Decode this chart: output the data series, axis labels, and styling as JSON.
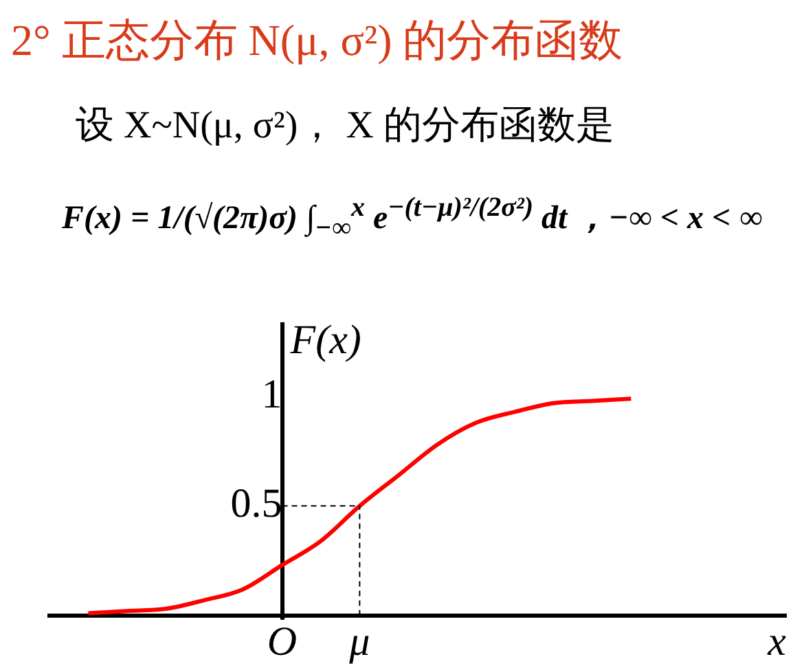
{
  "chart_data": {
    "type": "line",
    "title": "2° 正态分布 N(μ, σ²) 的分布函数",
    "subtitle": "设 X~N(μ, σ²)，  X 的分布函数是",
    "annotations": [
      "F(x) = 1/(√(2π)σ) ∫$_{−∞}$$^{x}$ e$^{−(t−μ)²/(2σ²)}$ dt ，−∞ < x < ∞"
    ],
    "xlabel": "x",
    "ylabel": "F(x)",
    "categories": [
      null,
      null,
      null,
      null,
      null,
      null,
      "O",
      null,
      "μ",
      null,
      null,
      null,
      null,
      null,
      null,
      null,
      null,
      null,
      null,
      null
    ],
    "series": [
      {
        "color": "#ff0000",
        "values": [
          null,
          0.01,
          0.02,
          0.03,
          0.07,
          0.12,
          0.23,
          0.34,
          0.5,
          0.64,
          0.78,
          0.88,
          0.93,
          0.97,
          0.98,
          0.99,
          null,
          null,
          null,
          null
        ]
      }
    ],
    "ylim": [
      -0.02,
      1.33
    ],
    "yticks": [
      0.5,
      1
    ],
    "ref_lines": [
      {
        "axis": "y",
        "value": 0.5,
        "color": "#000000",
        "line_style": "dashed"
      },
      {
        "axis": "x",
        "value": "μ",
        "color": "#000000",
        "line_style": "dashed"
      }
    ],
    "grid": false,
    "marker": "none",
    "line_style": "solid"
  }
}
